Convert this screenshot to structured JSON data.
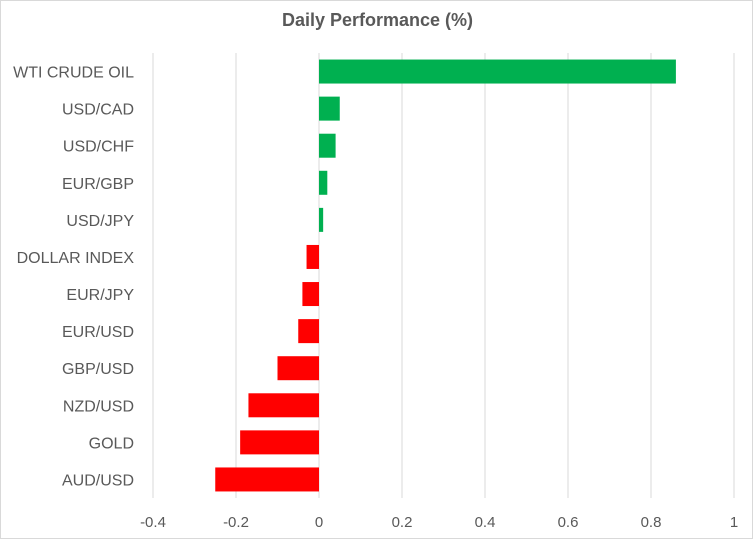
{
  "colors": {
    "positive": "#00b050",
    "negative": "#ff0000",
    "grid": "#d9d9d9",
    "text": "#595959"
  },
  "chart_data": {
    "type": "bar",
    "orientation": "horizontal",
    "title": "Daily Performance (%)",
    "xlabel": "",
    "ylabel": "",
    "xlim": [
      -0.4,
      1
    ],
    "xticks": [
      -0.4,
      -0.2,
      0,
      0.2,
      0.4,
      0.6,
      0.8,
      1
    ],
    "xtick_labels": [
      "-0.4",
      "-0.2",
      "0",
      "0.2",
      "0.4",
      "0.6",
      "0.8",
      "1"
    ],
    "grid": "vertical",
    "legend": "none",
    "categories": [
      "WTI CRUDE OIL",
      "USD/CAD",
      "USD/CHF",
      "EUR/GBP",
      "USD/JPY",
      "DOLLAR INDEX",
      "EUR/JPY",
      "EUR/USD",
      "GBP/USD",
      "NZD/USD",
      "GOLD",
      "AUD/USD"
    ],
    "values": [
      0.86,
      0.05,
      0.04,
      0.02,
      0.01,
      -0.03,
      -0.04,
      -0.05,
      -0.1,
      -0.17,
      -0.19,
      -0.25
    ]
  }
}
